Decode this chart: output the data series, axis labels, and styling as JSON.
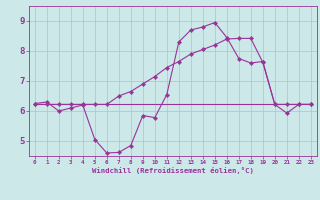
{
  "xlabel": "Windchill (Refroidissement éolien,°C)",
  "bg_color": "#cce8e8",
  "line_color": "#993399",
  "grid_color": "#99cccc",
  "ylim": [
    4.5,
    9.5
  ],
  "xlim": [
    -0.5,
    23.5
  ],
  "yticks": [
    5,
    6,
    7,
    8,
    9
  ],
  "xticks": [
    0,
    1,
    2,
    3,
    4,
    5,
    6,
    7,
    8,
    9,
    10,
    11,
    12,
    13,
    14,
    15,
    16,
    17,
    18,
    19,
    20,
    21,
    22,
    23
  ],
  "line1_x": [
    0,
    1,
    2,
    3,
    4,
    5,
    6,
    7,
    8,
    9,
    10,
    11,
    12,
    13,
    14,
    15,
    16,
    17,
    18,
    19,
    20,
    21,
    22,
    23
  ],
  "line1_y": [
    6.25,
    6.3,
    6.0,
    6.1,
    6.2,
    5.05,
    4.6,
    4.62,
    4.85,
    5.85,
    5.78,
    6.55,
    8.3,
    8.7,
    8.8,
    8.95,
    8.45,
    7.75,
    7.6,
    7.65,
    6.22,
    5.93,
    6.22,
    6.22
  ],
  "line2_x": [
    0,
    23
  ],
  "line2_y": [
    6.22,
    6.22
  ],
  "line3_x": [
    0,
    1,
    2,
    3,
    4,
    5,
    6,
    7,
    8,
    9,
    10,
    11,
    12,
    13,
    14,
    15,
    16,
    17,
    18,
    19,
    20,
    21,
    22,
    23
  ],
  "line3_y": [
    6.22,
    6.22,
    6.22,
    6.22,
    6.22,
    6.22,
    6.22,
    6.5,
    6.65,
    6.9,
    7.15,
    7.45,
    7.65,
    7.9,
    8.05,
    8.2,
    8.4,
    8.42,
    8.42,
    7.62,
    6.22,
    6.22,
    6.22,
    6.22
  ]
}
